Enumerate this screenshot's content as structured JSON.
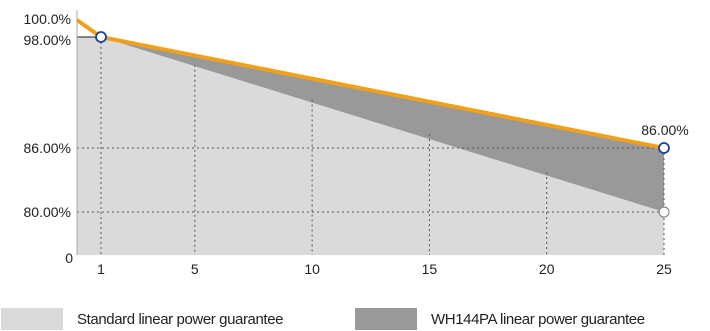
{
  "chart_data": {
    "type": "area",
    "x_ticks": [
      1,
      5,
      10,
      15,
      20,
      25
    ],
    "xlim": [
      1,
      25
    ],
    "y_ticks": [
      {
        "value": 0,
        "label": "0"
      },
      {
        "value": 80,
        "label": "80.00%"
      },
      {
        "value": 86,
        "label": "86.00%"
      },
      {
        "value": 98,
        "label": "98.00%"
      },
      {
        "value": 100,
        "label": "100.0%"
      }
    ],
    "grid": true,
    "legend_position": "bottom",
    "series": [
      {
        "name": "Standard linear power guarantee",
        "color": "#d9dad9",
        "x": [
          1,
          25
        ],
        "y": [
          98,
          80
        ]
      },
      {
        "name": "WH144PA linear power guarantee",
        "color": "#999999",
        "x": [
          1,
          25
        ],
        "y": [
          98,
          86
        ]
      }
    ],
    "edge_line": {
      "color": "#f0a01a",
      "x": [
        0,
        1,
        25
      ],
      "y": [
        100,
        98,
        86
      ]
    },
    "markers": [
      {
        "x": 1,
        "y": 98,
        "style": "blue-outline"
      },
      {
        "x": 25,
        "y": 86,
        "style": "blue-outline"
      },
      {
        "x": 25,
        "y": 80,
        "style": "gray-outline"
      }
    ],
    "annotations": [
      {
        "text": "86.00%",
        "x": 25,
        "y": 86
      }
    ]
  }
}
